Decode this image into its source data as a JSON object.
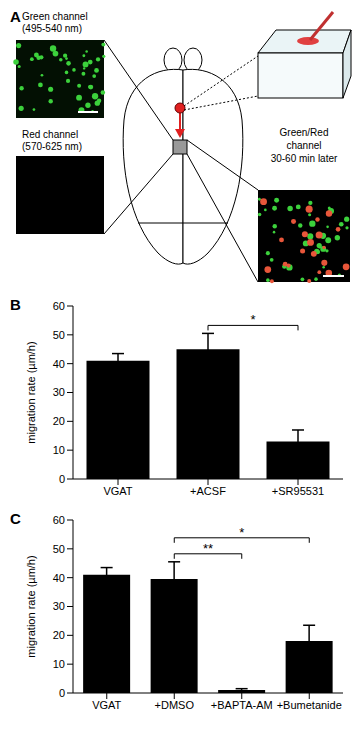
{
  "panel_a": {
    "panel_label": "A",
    "green_label": [
      "Green channel",
      "(495-540 nm)"
    ],
    "red_label": [
      "Red channel",
      "(570-625 nm)"
    ],
    "merge_label": [
      "Green/Red",
      "channel",
      "30-60 min later"
    ]
  },
  "chart_data": [
    {
      "type": "bar",
      "panel_label": "B",
      "y_label": "migration rate (µm/h)",
      "categories": [
        "VGAT",
        "+ACSF",
        "+SR95531"
      ],
      "values": [
        41,
        45,
        13
      ],
      "errors": [
        2.5,
        5.5,
        4
      ],
      "color": "#000000",
      "ylim": [
        0,
        60
      ],
      "yticks": [
        0,
        10,
        20,
        30,
        40,
        50,
        60
      ],
      "significance": [
        {
          "from": "+ACSF",
          "to": "+SR95531",
          "label": "*"
        }
      ]
    },
    {
      "type": "bar",
      "panel_label": "C",
      "y_label": "migration rate (µm/h)",
      "categories": [
        "VGAT",
        "+DMSO",
        "+BAPTA-AM",
        "+Bumetanide"
      ],
      "values": [
        41,
        39.5,
        1,
        18
      ],
      "errors": [
        2.5,
        6,
        0.5,
        5.5
      ],
      "color": "#000000",
      "ylim": [
        0,
        60
      ],
      "yticks": [
        0,
        10,
        20,
        30,
        40,
        50,
        60
      ],
      "significance": [
        {
          "from": "+DMSO",
          "to": "+BAPTA-AM",
          "label": "**"
        },
        {
          "from": "+DMSO",
          "to": "+Bumetanide",
          "label": "*"
        }
      ]
    }
  ]
}
